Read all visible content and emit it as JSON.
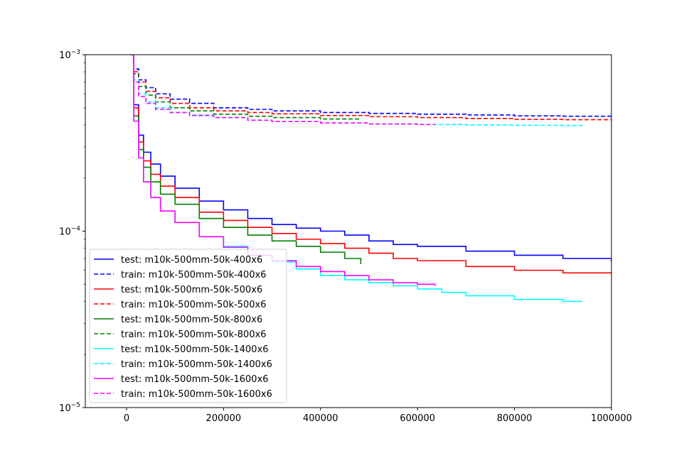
{
  "chart_data": {
    "type": "line",
    "title": "",
    "xlabel": "",
    "ylabel": "",
    "xlim": [
      -85000,
      1000000
    ],
    "ylim": [
      1e-05,
      0.001
    ],
    "yscale": "log",
    "grid": false,
    "legend_position": "lower-left",
    "x_ticks": [
      0,
      200000,
      400000,
      600000,
      800000,
      1000000
    ],
    "x_tick_labels": [
      "0",
      "200000",
      "400000",
      "600000",
      "800000",
      "1000000"
    ],
    "y_ticks": [
      1e-05,
      0.0001,
      0.001
    ],
    "y_tick_labels": [
      {
        "base": "10",
        "exp": "−5"
      },
      {
        "base": "10",
        "exp": "−4"
      },
      {
        "base": "10",
        "exp": "−3"
      }
    ],
    "series": [
      {
        "name": "test: m10k-500mm-50k-400x6",
        "color": "#0000ff",
        "dash": false,
        "x": [
          8000,
          15000,
          25000,
          35000,
          50000,
          70000,
          100000,
          150000,
          200000,
          250000,
          300000,
          350000,
          400000,
          450000,
          500000,
          550000,
          600000,
          700000,
          800000,
          900000,
          1000000
        ],
        "y": [
          0.001,
          0.00052,
          0.00035,
          0.00028,
          0.00024,
          0.000205,
          0.000175,
          0.000148,
          0.000132,
          0.000118,
          0.000109,
          0.000104,
          0.0001,
          9.5e-05,
          8.8e-05,
          8.4e-05,
          8.2e-05,
          7.7e-05,
          7.3e-05,
          7e-05,
          6.7e-05
        ]
      },
      {
        "name": "train: m10k-500mm-50k-400x6",
        "color": "#0000ff",
        "dash": true,
        "x": [
          10000,
          15000,
          25000,
          40000,
          60000,
          90000,
          130000,
          180000,
          250000,
          300000,
          400000,
          500000,
          600000,
          700000,
          800000,
          900000,
          1000000
        ],
        "y": [
          0.001,
          0.00083,
          0.00072,
          0.00065,
          0.0006,
          0.00056,
          0.00053,
          0.0005,
          0.00049,
          0.00048,
          0.00047,
          0.000465,
          0.00046,
          0.000455,
          0.00045,
          0.000448,
          0.000445
        ]
      },
      {
        "name": "test: m10k-500mm-50k-500x6",
        "color": "#ff0000",
        "dash": false,
        "x": [
          8000,
          15000,
          25000,
          35000,
          50000,
          70000,
          100000,
          150000,
          200000,
          250000,
          300000,
          350000,
          400000,
          450000,
          500000,
          550000,
          600000,
          700000,
          800000,
          900000,
          1000000
        ],
        "y": [
          0.001,
          0.0005,
          0.00032,
          0.00025,
          0.00021,
          0.00018,
          0.000155,
          0.000128,
          0.000115,
          0.000105,
          9.7e-05,
          9e-05,
          8.5e-05,
          8e-05,
          7.5e-05,
          7e-05,
          6.8e-05,
          6.3e-05,
          6e-05,
          5.8e-05,
          5.7e-05
        ]
      },
      {
        "name": "train: m10k-500mm-50k-500x6",
        "color": "#ff0000",
        "dash": true,
        "x": [
          10000,
          15000,
          25000,
          40000,
          60000,
          90000,
          130000,
          180000,
          250000,
          300000,
          400000,
          500000,
          600000,
          700000,
          800000,
          900000,
          1000000
        ],
        "y": [
          0.001,
          0.0008,
          0.0007,
          0.00062,
          0.00057,
          0.00053,
          0.0005,
          0.00048,
          0.00047,
          0.000462,
          0.000452,
          0.000445,
          0.00044,
          0.000435,
          0.00043,
          0.000428,
          0.000425
        ]
      },
      {
        "name": "test: m10k-500mm-50k-800x6",
        "color": "#008000",
        "dash": false,
        "x": [
          8000,
          15000,
          25000,
          35000,
          50000,
          70000,
          100000,
          150000,
          200000,
          250000,
          300000,
          350000,
          400000,
          450000,
          483000
        ],
        "y": [
          0.001,
          0.00045,
          0.00029,
          0.00023,
          0.00019,
          0.000162,
          0.000142,
          0.000118,
          0.000105,
          9.5e-05,
          8.8e-05,
          8.2e-05,
          7.6e-05,
          7e-05,
          6.5e-05
        ]
      },
      {
        "name": "train: m10k-500mm-50k-800x6",
        "color": "#008000",
        "dash": true,
        "x": [
          10000,
          15000,
          25000,
          40000,
          60000,
          90000,
          130000,
          180000,
          250000,
          300000,
          400000,
          483000
        ],
        "y": [
          0.001,
          0.00078,
          0.00066,
          0.00059,
          0.00054,
          0.0005,
          0.00048,
          0.00046,
          0.000448,
          0.00044,
          0.000432,
          0.00043
        ]
      },
      {
        "name": "test: m10k-500mm-50k-1400x6",
        "color": "#00ffff",
        "dash": false,
        "x": [
          8000,
          15000,
          25000,
          35000,
          50000,
          70000,
          100000,
          150000,
          200000,
          250000,
          300000,
          350000,
          400000,
          450000,
          500000,
          550000,
          600000,
          650000,
          700000,
          800000,
          900000,
          940000
        ],
        "y": [
          0.001,
          0.00042,
          0.00026,
          0.00019,
          0.000155,
          0.00013,
          0.000112,
          9.3e-05,
          8.2e-05,
          7.3e-05,
          6.7e-05,
          6.1e-05,
          5.6e-05,
          5.3e-05,
          5.1e-05,
          4.9e-05,
          4.7e-05,
          4.5e-05,
          4.3e-05,
          4.1e-05,
          4e-05,
          4e-05
        ]
      },
      {
        "name": "train: m10k-500mm-50k-1400x6",
        "color": "#00ffff",
        "dash": true,
        "x": [
          10000,
          15000,
          25000,
          40000,
          60000,
          90000,
          130000,
          180000,
          250000,
          300000,
          400000,
          500000,
          600000,
          700000,
          800000,
          900000,
          940000
        ],
        "y": [
          0.001,
          0.00072,
          0.0006,
          0.00054,
          0.0005,
          0.00047,
          0.000455,
          0.00044,
          0.000425,
          0.000418,
          0.00041,
          0.000405,
          0.000402,
          0.0004,
          0.000398,
          0.000397,
          0.000396
        ]
      },
      {
        "name": "test: m10k-500mm-50k-1600x6",
        "color": "#ff00ff",
        "dash": false,
        "x": [
          8000,
          15000,
          25000,
          35000,
          50000,
          70000,
          100000,
          150000,
          200000,
          250000,
          300000,
          350000,
          400000,
          450000,
          500000,
          550000,
          600000,
          636000
        ],
        "y": [
          0.001,
          0.00042,
          0.00026,
          0.00019,
          0.000155,
          0.00013,
          0.000112,
          9.3e-05,
          8.1e-05,
          7.3e-05,
          6.8e-05,
          6.3e-05,
          5.9e-05,
          5.6e-05,
          5.3e-05,
          5.1e-05,
          5e-05,
          4.9e-05
        ]
      },
      {
        "name": "train: m10k-500mm-50k-1600x6",
        "color": "#ff00ff",
        "dash": true,
        "x": [
          10000,
          15000,
          25000,
          40000,
          60000,
          90000,
          130000,
          180000,
          250000,
          300000,
          400000,
          500000,
          600000,
          636000
        ],
        "y": [
          0.001,
          0.0007,
          0.00058,
          0.00053,
          0.00049,
          0.00047,
          0.000452,
          0.00044,
          0.000425,
          0.000418,
          0.00041,
          0.000405,
          0.000402,
          0.000402
        ]
      }
    ]
  }
}
